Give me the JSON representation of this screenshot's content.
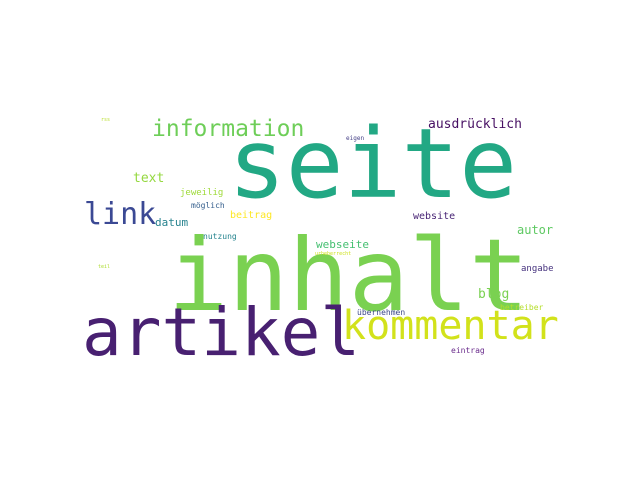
{
  "word_cloud": {
    "words": [
      {
        "text": "seite",
        "color": "#22a884"
      },
      {
        "text": "inhalt",
        "color": "#7ad151"
      },
      {
        "text": "artikel",
        "color": "#482071"
      },
      {
        "text": "kommentar",
        "color": "#d2e21b"
      },
      {
        "text": "information",
        "color": "#6ece58"
      },
      {
        "text": "link",
        "color": "#3b4994"
      },
      {
        "text": "ausdrücklich",
        "color": "#471063"
      },
      {
        "text": "text",
        "color": "#95d840"
      },
      {
        "text": "autor",
        "color": "#5ec962"
      },
      {
        "text": "blog",
        "color": "#7ad151"
      },
      {
        "text": "datum",
        "color": "#26828e"
      },
      {
        "text": "webseite",
        "color": "#44bf70"
      },
      {
        "text": "website",
        "color": "#482475"
      },
      {
        "text": "beitrag",
        "color": "#fde725"
      },
      {
        "text": "angabe",
        "color": "#46327e"
      },
      {
        "text": "jeweilig",
        "color": "#9fda3a"
      },
      {
        "text": "möglich",
        "color": "#355f8d"
      },
      {
        "text": "nutzung",
        "color": "#25848e"
      },
      {
        "text": "betreiber",
        "color": "#b5de2b"
      },
      {
        "text": "übernehmen",
        "color": "#3e4989"
      },
      {
        "text": "eintrag",
        "color": "#6a2c8c"
      },
      {
        "text": "eigen",
        "color": "#433e85"
      },
      {
        "text": "urheberrecht",
        "color": "#cde11d"
      },
      {
        "text": "teil",
        "color": "#addc30"
      },
      {
        "text": "rss",
        "color": "#b8de29"
      }
    ]
  }
}
